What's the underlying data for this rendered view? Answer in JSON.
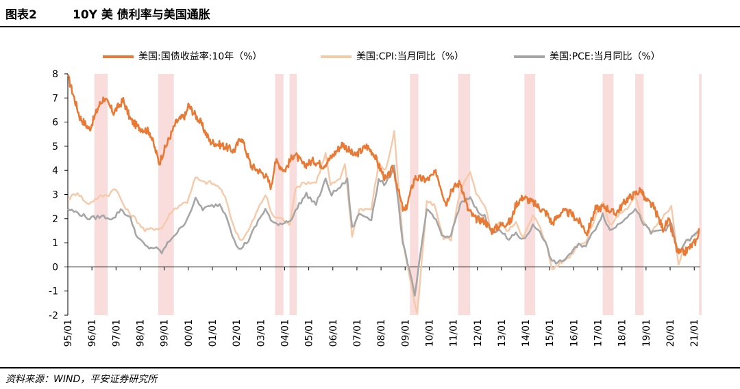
{
  "header": {
    "figure_label": "图表2",
    "title": "10Y 美 债利率与美国通胀"
  },
  "footer": {
    "source": "资料来源：WIND，平安证券研究所"
  },
  "chart_data": {
    "type": "line",
    "x_start": 1995.0,
    "x_end": 2021.25,
    "ylim": [
      -2,
      8
    ],
    "yticks": [
      -2,
      -1,
      0,
      1,
      2,
      3,
      4,
      5,
      6,
      7,
      8
    ],
    "xticks": [
      "95/01",
      "96/01",
      "97/01",
      "98/01",
      "99/01",
      "00/01",
      "01/01",
      "02/01",
      "03/01",
      "04/01",
      "05/01",
      "06/01",
      "07/01",
      "08/01",
      "09/01",
      "10/01",
      "11/01",
      "12/01",
      "13/01",
      "14/01",
      "15/01",
      "16/01",
      "17/01",
      "18/01",
      "19/01",
      "20/01",
      "21/01"
    ],
    "legend_position": "top",
    "series": [
      {
        "name": "美国:国债收益率:10年（%）",
        "color": "#E87A35",
        "points": [
          [
            1995.0,
            7.9
          ],
          [
            1995.5,
            6.2
          ],
          [
            1995.9,
            5.7
          ],
          [
            1996.3,
            6.7
          ],
          [
            1996.5,
            7.0
          ],
          [
            1996.9,
            6.4
          ],
          [
            1997.3,
            6.9
          ],
          [
            1997.6,
            6.1
          ],
          [
            1997.9,
            5.8
          ],
          [
            1998.4,
            5.6
          ],
          [
            1998.8,
            4.3
          ],
          [
            1998.9,
            4.6
          ],
          [
            1999.2,
            5.3
          ],
          [
            1999.5,
            6.0
          ],
          [
            1999.9,
            6.3
          ],
          [
            2000.0,
            6.7
          ],
          [
            2000.5,
            6.0
          ],
          [
            2000.9,
            5.2
          ],
          [
            2001.5,
            5.0
          ],
          [
            2001.9,
            4.8
          ],
          [
            2002.2,
            5.4
          ],
          [
            2002.6,
            4.2
          ],
          [
            2002.9,
            4.0
          ],
          [
            2003.2,
            3.8
          ],
          [
            2003.45,
            3.3
          ],
          [
            2003.6,
            4.4
          ],
          [
            2004.0,
            4.0
          ],
          [
            2004.4,
            4.7
          ],
          [
            2004.8,
            4.2
          ],
          [
            2005.2,
            4.4
          ],
          [
            2005.6,
            4.2
          ],
          [
            2005.9,
            4.5
          ],
          [
            2006.4,
            5.1
          ],
          [
            2006.9,
            4.6
          ],
          [
            2007.4,
            5.0
          ],
          [
            2007.7,
            4.7
          ],
          [
            2007.9,
            4.2
          ],
          [
            2008.2,
            3.6
          ],
          [
            2008.5,
            4.1
          ],
          [
            2008.9,
            2.4
          ],
          [
            2009.0,
            2.3
          ],
          [
            2009.4,
            3.7
          ],
          [
            2009.9,
            3.6
          ],
          [
            2010.3,
            3.9
          ],
          [
            2010.7,
            2.6
          ],
          [
            2010.9,
            3.2
          ],
          [
            2011.3,
            3.5
          ],
          [
            2011.6,
            2.4
          ],
          [
            2011.9,
            2.0
          ],
          [
            2012.3,
            1.9
          ],
          [
            2012.6,
            1.5
          ],
          [
            2012.9,
            1.7
          ],
          [
            2013.4,
            1.9
          ],
          [
            2013.6,
            2.6
          ],
          [
            2013.9,
            2.9
          ],
          [
            2014.4,
            2.6
          ],
          [
            2014.9,
            2.2
          ],
          [
            2015.1,
            1.8
          ],
          [
            2015.5,
            2.3
          ],
          [
            2015.9,
            2.2
          ],
          [
            2016.3,
            1.8
          ],
          [
            2016.55,
            1.4
          ],
          [
            2016.9,
            2.4
          ],
          [
            2017.3,
            2.5
          ],
          [
            2017.7,
            2.2
          ],
          [
            2017.9,
            2.4
          ],
          [
            2018.2,
            2.8
          ],
          [
            2018.8,
            3.2
          ],
          [
            2018.95,
            2.8
          ],
          [
            2019.3,
            2.5
          ],
          [
            2019.7,
            1.6
          ],
          [
            2019.95,
            1.9
          ],
          [
            2020.2,
            1.0
          ],
          [
            2020.3,
            0.6
          ],
          [
            2020.6,
            0.6
          ],
          [
            2020.9,
            0.9
          ],
          [
            2021.1,
            1.1
          ],
          [
            2021.2,
            1.6
          ]
        ]
      },
      {
        "name": "美国:CPI:当月同比（%）",
        "color": "#F6C9A8",
        "points": [
          [
            1995.0,
            2.8
          ],
          [
            1995.4,
            3.1
          ],
          [
            1995.8,
            2.6
          ],
          [
            1996.3,
            2.9
          ],
          [
            1996.7,
            3.0
          ],
          [
            1996.95,
            3.3
          ],
          [
            1997.4,
            2.4
          ],
          [
            1997.8,
            2.0
          ],
          [
            1998.2,
            1.5
          ],
          [
            1998.6,
            1.6
          ],
          [
            1998.9,
            1.6
          ],
          [
            1999.3,
            2.3
          ],
          [
            1999.7,
            2.6
          ],
          [
            1999.95,
            2.7
          ],
          [
            2000.3,
            3.7
          ],
          [
            2000.6,
            3.5
          ],
          [
            2000.9,
            3.5
          ],
          [
            2001.3,
            3.3
          ],
          [
            2001.6,
            2.7
          ],
          [
            2001.9,
            1.6
          ],
          [
            2002.2,
            1.1
          ],
          [
            2002.5,
            1.5
          ],
          [
            2002.9,
            2.4
          ],
          [
            2003.2,
            3.0
          ],
          [
            2003.5,
            2.1
          ],
          [
            2003.9,
            2.0
          ],
          [
            2004.2,
            1.7
          ],
          [
            2004.45,
            3.3
          ],
          [
            2004.9,
            3.5
          ],
          [
            2005.3,
            3.5
          ],
          [
            2005.7,
            4.7
          ],
          [
            2005.9,
            3.4
          ],
          [
            2006.3,
            3.6
          ],
          [
            2006.5,
            4.3
          ],
          [
            2006.8,
            1.3
          ],
          [
            2007.1,
            2.4
          ],
          [
            2007.6,
            2.4
          ],
          [
            2007.9,
            4.3
          ],
          [
            2008.2,
            4.0
          ],
          [
            2008.55,
            5.6
          ],
          [
            2008.9,
            1.1
          ],
          [
            2009.1,
            0.0
          ],
          [
            2009.5,
            -2.0
          ],
          [
            2009.9,
            2.7
          ],
          [
            2010.2,
            2.6
          ],
          [
            2010.6,
            1.2
          ],
          [
            2010.9,
            1.1
          ],
          [
            2011.3,
            3.2
          ],
          [
            2011.7,
            3.9
          ],
          [
            2011.95,
            3.0
          ],
          [
            2012.3,
            2.6
          ],
          [
            2012.6,
            1.4
          ],
          [
            2012.9,
            1.8
          ],
          [
            2013.3,
            1.5
          ],
          [
            2013.6,
            1.9
          ],
          [
            2013.9,
            1.2
          ],
          [
            2014.3,
            2.1
          ],
          [
            2014.6,
            1.7
          ],
          [
            2014.9,
            0.8
          ],
          [
            2015.1,
            -0.1
          ],
          [
            2015.5,
            0.2
          ],
          [
            2015.9,
            0.5
          ],
          [
            2016.2,
            1.0
          ],
          [
            2016.5,
            1.0
          ],
          [
            2016.9,
            2.1
          ],
          [
            2017.2,
            2.7
          ],
          [
            2017.5,
            1.7
          ],
          [
            2017.9,
            2.2
          ],
          [
            2018.3,
            2.5
          ],
          [
            2018.55,
            2.9
          ],
          [
            2018.9,
            1.9
          ],
          [
            2019.2,
            1.5
          ],
          [
            2019.5,
            1.8
          ],
          [
            2019.9,
            2.3
          ],
          [
            2020.05,
            2.5
          ],
          [
            2020.35,
            0.1
          ],
          [
            2020.6,
            1.0
          ],
          [
            2020.9,
            1.2
          ],
          [
            2021.2,
            1.5
          ]
        ]
      },
      {
        "name": "美国:PCE:当月同比（%）",
        "color": "#A6A6A6",
        "points": [
          [
            1995.0,
            2.4
          ],
          [
            1995.5,
            2.2
          ],
          [
            1995.9,
            2.0
          ],
          [
            1996.4,
            2.1
          ],
          [
            1996.9,
            2.0
          ],
          [
            1997.2,
            2.4
          ],
          [
            1997.6,
            2.0
          ],
          [
            1997.9,
            1.2
          ],
          [
            1998.3,
            0.8
          ],
          [
            1998.6,
            0.8
          ],
          [
            1998.9,
            0.6
          ],
          [
            1999.3,
            1.2
          ],
          [
            1999.7,
            1.6
          ],
          [
            1999.95,
            2.0
          ],
          [
            2000.3,
            2.8
          ],
          [
            2000.6,
            2.4
          ],
          [
            2000.9,
            2.5
          ],
          [
            2001.3,
            2.6
          ],
          [
            2001.6,
            2.1
          ],
          [
            2001.9,
            1.1
          ],
          [
            2002.1,
            0.7
          ],
          [
            2002.5,
            1.1
          ],
          [
            2002.9,
            1.9
          ],
          [
            2003.2,
            2.4
          ],
          [
            2003.5,
            1.8
          ],
          [
            2003.9,
            1.8
          ],
          [
            2004.3,
            2.0
          ],
          [
            2004.6,
            2.6
          ],
          [
            2004.9,
            3.0
          ],
          [
            2005.3,
            2.6
          ],
          [
            2005.7,
            3.6
          ],
          [
            2005.95,
            3.0
          ],
          [
            2006.4,
            3.4
          ],
          [
            2006.6,
            3.6
          ],
          [
            2006.8,
            1.6
          ],
          [
            2007.1,
            2.2
          ],
          [
            2007.6,
            2.0
          ],
          [
            2007.9,
            3.6
          ],
          [
            2008.2,
            3.4
          ],
          [
            2008.55,
            4.2
          ],
          [
            2008.9,
            1.0
          ],
          [
            2009.1,
            0.2
          ],
          [
            2009.4,
            -1.2
          ],
          [
            2009.9,
            2.4
          ],
          [
            2010.2,
            2.1
          ],
          [
            2010.6,
            1.2
          ],
          [
            2010.9,
            1.3
          ],
          [
            2011.3,
            2.6
          ],
          [
            2011.7,
            2.9
          ],
          [
            2011.95,
            2.4
          ],
          [
            2012.3,
            2.1
          ],
          [
            2012.6,
            1.4
          ],
          [
            2012.9,
            1.6
          ],
          [
            2013.3,
            1.1
          ],
          [
            2013.6,
            1.4
          ],
          [
            2013.9,
            1.1
          ],
          [
            2014.3,
            1.7
          ],
          [
            2014.6,
            1.5
          ],
          [
            2014.9,
            0.8
          ],
          [
            2015.1,
            0.2
          ],
          [
            2015.5,
            0.2
          ],
          [
            2015.9,
            0.6
          ],
          [
            2016.2,
            0.9
          ],
          [
            2016.5,
            0.9
          ],
          [
            2016.9,
            1.6
          ],
          [
            2017.2,
            2.2
          ],
          [
            2017.5,
            1.5
          ],
          [
            2017.9,
            1.8
          ],
          [
            2018.3,
            2.2
          ],
          [
            2018.55,
            2.4
          ],
          [
            2018.9,
            1.8
          ],
          [
            2019.2,
            1.4
          ],
          [
            2019.5,
            1.5
          ],
          [
            2019.9,
            1.6
          ],
          [
            2020.05,
            1.8
          ],
          [
            2020.35,
            0.5
          ],
          [
            2020.6,
            1.0
          ],
          [
            2020.9,
            1.2
          ],
          [
            2021.2,
            1.5
          ]
        ]
      }
    ],
    "shaded_periods": [
      [
        1996.1,
        1996.65
      ],
      [
        1998.75,
        1999.4
      ],
      [
        2003.6,
        2003.95
      ],
      [
        2004.2,
        2004.5
      ],
      [
        2009.2,
        2009.55
      ],
      [
        2011.2,
        2011.7
      ],
      [
        2013.95,
        2014.4
      ],
      [
        2017.2,
        2017.65
      ],
      [
        2018.55,
        2018.9
      ],
      [
        2021.2,
        2021.5
      ]
    ]
  }
}
